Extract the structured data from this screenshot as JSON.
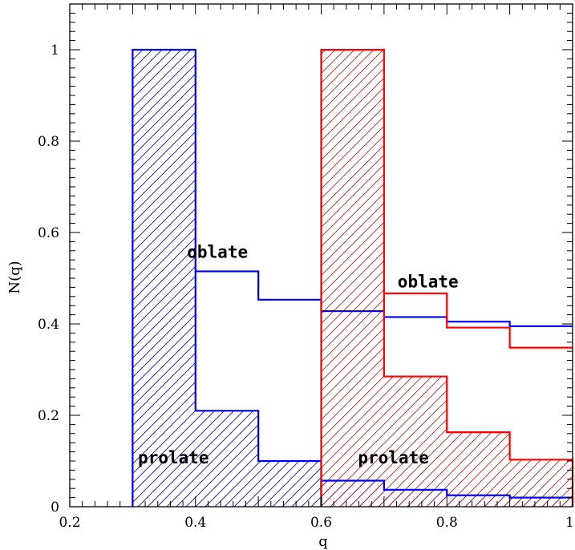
{
  "chart_data": {
    "type": "histogram",
    "xlabel": "q",
    "ylabel": "N(q)",
    "xlim": [
      0.2,
      1.0
    ],
    "ylim": [
      0,
      1.1
    ],
    "x_ticks": [
      "0.2",
      "0.4",
      "0.6",
      "0.8",
      "1"
    ],
    "y_ticks": [
      "0",
      "0.2",
      "0.4",
      "0.6",
      "0.8",
      "1"
    ],
    "grid": false,
    "annotations": [
      {
        "text": "oblate",
        "x": 0.435,
        "y": 0.545
      },
      {
        "text": "prolate",
        "x": 0.365,
        "y": 0.095
      },
      {
        "text": "oblate",
        "x": 0.77,
        "y": 0.48
      },
      {
        "text": "prolate",
        "x": 0.715,
        "y": 0.095
      }
    ],
    "series": [
      {
        "color": "#0000ff",
        "hatched": true,
        "bin_edges": [
          0.3,
          0.4,
          0.5,
          0.6
        ],
        "values": [
          1.0,
          0.21,
          0.1
        ]
      },
      {
        "color": "#0000ff",
        "hatched": false,
        "bin_edges": [
          0.4,
          0.5,
          0.6,
          0.7,
          0.8,
          0.9,
          1.0
        ],
        "values": [
          0.515,
          0.453,
          0.428,
          0.415,
          0.405,
          0.395
        ]
      },
      {
        "color": "#0000ff",
        "hatched": true,
        "bin_edges": [
          0.6,
          0.7,
          0.8,
          0.9,
          1.0
        ],
        "values": [
          0.057,
          0.037,
          0.025,
          0.02
        ]
      },
      {
        "color": "#ff0000",
        "hatched": true,
        "bin_edges": [
          0.6,
          0.7,
          0.8,
          0.9,
          1.0
        ],
        "values": [
          1.0,
          0.285,
          0.163,
          0.103
        ]
      },
      {
        "color": "#ff0000",
        "hatched": false,
        "bin_edges": [
          0.7,
          0.8,
          0.9,
          1.0
        ],
        "values": [
          0.467,
          0.392,
          0.348
        ]
      }
    ]
  }
}
